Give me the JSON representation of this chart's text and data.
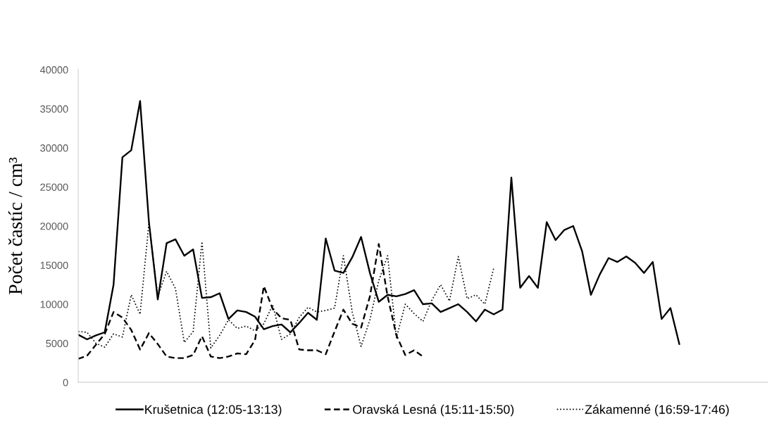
{
  "chart_data": {
    "type": "line",
    "ylabel": "Počet častíc / cm³",
    "categories": [
      null,
      null,
      null,
      null,
      null,
      null,
      null,
      null,
      null,
      null,
      null,
      null,
      null,
      null,
      null,
      null,
      null,
      null,
      null,
      null,
      null,
      null,
      null,
      null,
      null,
      null,
      null,
      null,
      null,
      null,
      null,
      null,
      null,
      null,
      null,
      null,
      null,
      null,
      null,
      null,
      null,
      null,
      null,
      null,
      null,
      null,
      null,
      null,
      null,
      null,
      null,
      null,
      null,
      null,
      null,
      null,
      null,
      null,
      null,
      null,
      null,
      null,
      null,
      null,
      null,
      null,
      null,
      null,
      null,
      null,
      null,
      null,
      null,
      null,
      null,
      null,
      null,
      null,
      null
    ],
    "series": [
      {
        "name": "Krušetnica (12:05-13:13)",
        "color": "#000000",
        "line_style": "solid",
        "values": [
          6100,
          5500,
          6000,
          6400,
          12500,
          28800,
          29700,
          36000,
          20500,
          10600,
          17800,
          18300,
          16200,
          17000,
          10800,
          10900,
          11400,
          8100,
          9200,
          9000,
          8400,
          6800,
          7200,
          7400,
          6400,
          7600,
          8900,
          8000,
          18400,
          14300,
          14000,
          16000,
          18600,
          14000,
          10300,
          11200,
          11000,
          11300,
          11800,
          10000,
          10100,
          9000,
          9500,
          10000,
          9000,
          7800,
          9300,
          8700,
          9300,
          26200,
          12100,
          13600,
          12100,
          20500,
          18200,
          19500,
          20000,
          16800,
          11200,
          13800,
          15900,
          15400,
          16100,
          15300,
          14000,
          15400,
          8100,
          9500,
          4900,
          null,
          null,
          null,
          null,
          null,
          null,
          null,
          null,
          null,
          null
        ]
      },
      {
        "name": "Oravská Lesná (15:11-15:50)",
        "color": "#000000",
        "line_style": "dashed",
        "values": [
          3000,
          3400,
          4800,
          6200,
          9000,
          8300,
          6700,
          4200,
          6300,
          4900,
          3300,
          3100,
          3100,
          3500,
          5900,
          3300,
          3100,
          3300,
          3700,
          3600,
          5400,
          12300,
          9400,
          8200,
          8000,
          4200,
          4100,
          4100,
          3600,
          6500,
          9300,
          7500,
          7000,
          11000,
          17700,
          11000,
          6000,
          3500,
          4100,
          3300,
          null,
          null,
          null,
          null,
          null,
          null,
          null,
          null,
          null,
          null,
          null,
          null,
          null,
          null,
          null,
          null,
          null,
          null,
          null,
          null,
          null,
          null,
          null,
          null,
          null,
          null,
          null,
          null,
          null,
          null,
          null,
          null,
          null,
          null,
          null,
          null,
          null,
          null,
          null
        ]
      },
      {
        "name": "Zákamenné (16:59-17:46)",
        "color": "#000000",
        "line_style": "dotted",
        "values": [
          6500,
          6400,
          5000,
          4500,
          6200,
          5800,
          11200,
          8700,
          20400,
          11000,
          14200,
          12000,
          5100,
          6500,
          18000,
          4400,
          6000,
          8000,
          6900,
          7200,
          6600,
          7500,
          9900,
          5500,
          6200,
          8300,
          9600,
          9000,
          9200,
          9500,
          16200,
          9000,
          4600,
          8000,
          13000,
          16200,
          5700,
          10000,
          8800,
          7800,
          10500,
          12500,
          10400,
          16100,
          10700,
          11200,
          10000,
          14600,
          null,
          null,
          null,
          null,
          null,
          null,
          null,
          null,
          null,
          null,
          null,
          null,
          null,
          null,
          null,
          null,
          null,
          null,
          null,
          null,
          null,
          null,
          null,
          null,
          null,
          null,
          null,
          null,
          null,
          null,
          null
        ]
      }
    ],
    "ylim": [
      0,
      40000
    ],
    "yticks": [
      0,
      5000,
      10000,
      15000,
      20000,
      25000,
      30000,
      35000,
      40000
    ],
    "legend": "bottom"
  }
}
